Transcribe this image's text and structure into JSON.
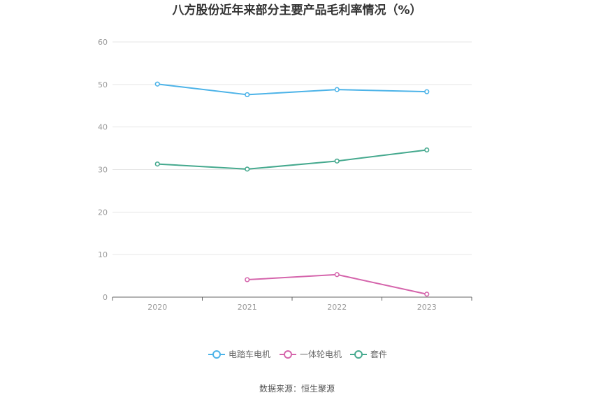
{
  "source_label": "数据来源：恒生聚源",
  "chart_data": {
    "type": "line",
    "title": "八方股份近年来部分主要产品毛利率情况（%）",
    "xlabel": "",
    "ylabel": "",
    "x": [
      "2020",
      "2021",
      "2022",
      "2023"
    ],
    "ylim": [
      0,
      60
    ],
    "yticks": [
      0,
      10,
      20,
      30,
      40,
      50,
      60
    ],
    "grid": true,
    "legend_position": "bottom",
    "series": [
      {
        "name": "电踏车电机",
        "color": "#4cb3e8",
        "values": [
          50.1,
          47.6,
          48.8,
          48.3
        ]
      },
      {
        "name": "一体轮电机",
        "color": "#d565ac",
        "values": [
          null,
          4.1,
          5.3,
          0.7
        ]
      },
      {
        "name": "套件",
        "color": "#45a98e",
        "values": [
          31.3,
          30.1,
          32.0,
          34.6
        ]
      }
    ]
  }
}
